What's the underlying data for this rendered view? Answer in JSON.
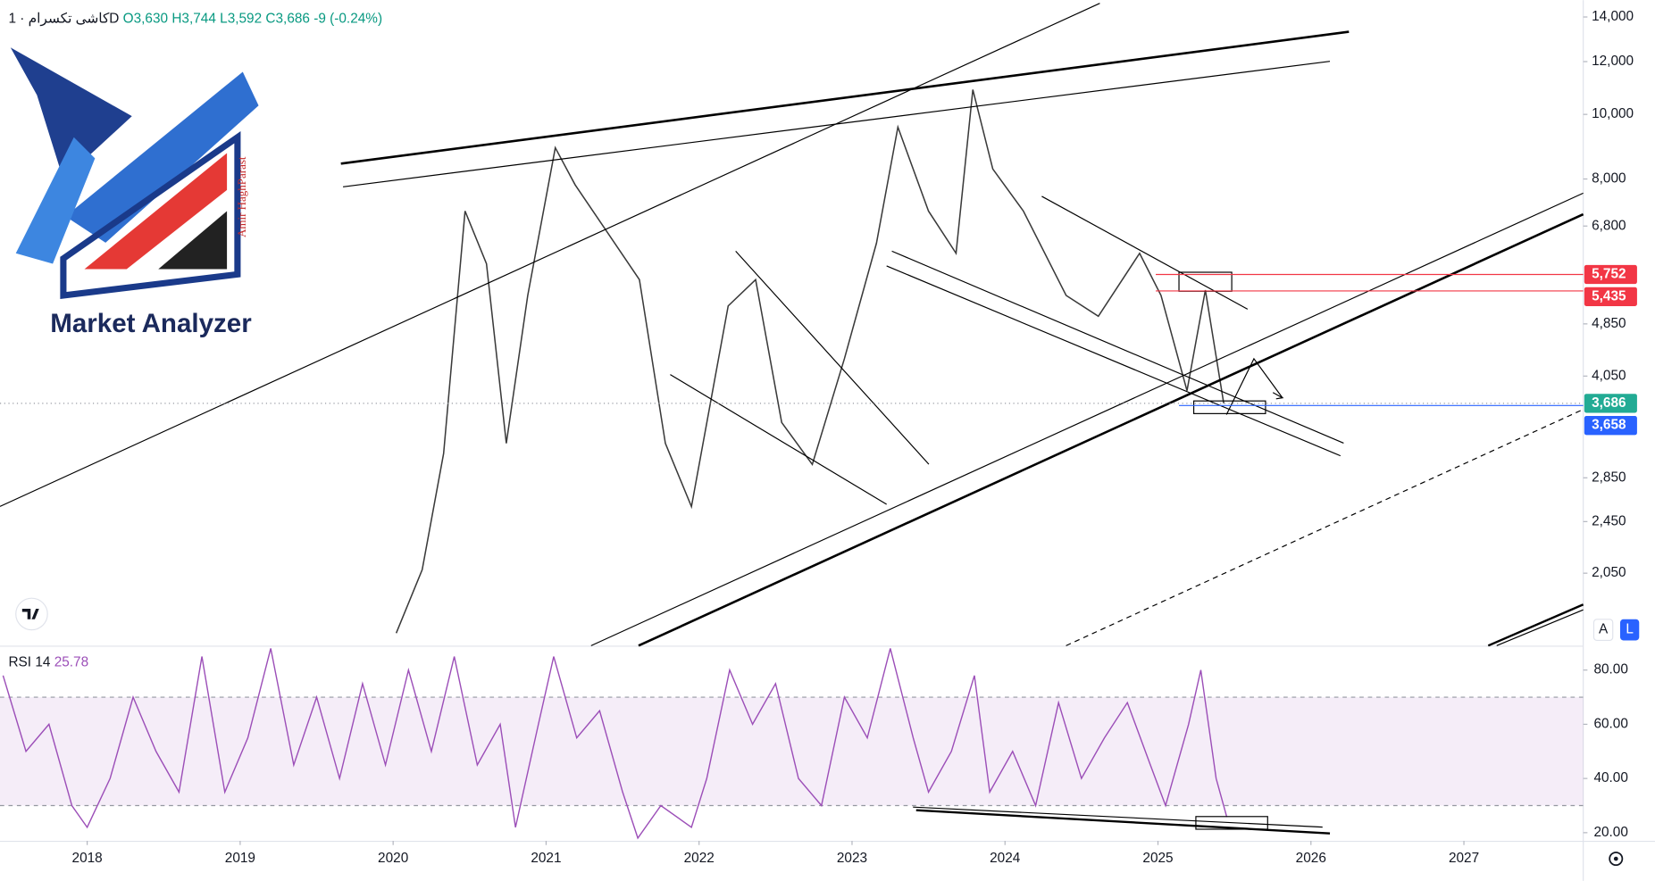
{
  "header": {
    "title": "کاشی تکسرام · 1D",
    "open": "O3,630",
    "high": "H3,744",
    "low": "L3,592",
    "close": "C3,686",
    "change": "-9 (-0.24%)"
  },
  "logo": {
    "brand": "Market Analyzer",
    "author": "Amir HaghParast"
  },
  "controls": {
    "auto": "A",
    "log": "L"
  },
  "chart_data": [
    {
      "type": "line",
      "log_scale": true,
      "xlim": [
        2017.43,
        2027.78
      ],
      "ylim": [
        1596,
        14840
      ],
      "yticks": [
        {
          "value": 14000,
          "label": "14,000"
        },
        {
          "value": 12000,
          "label": "12,000"
        },
        {
          "value": 10000,
          "label": "10,000"
        },
        {
          "value": 8000,
          "label": "8,000"
        },
        {
          "value": 6800,
          "label": "6,800"
        },
        {
          "value": 4850,
          "label": "4,850"
        },
        {
          "value": 4050,
          "label": "4,050"
        },
        {
          "value": 2850,
          "label": "2,850"
        },
        {
          "value": 2450,
          "label": "2,450"
        },
        {
          "value": 2050,
          "label": "2,050"
        }
      ],
      "levels": [
        {
          "value": 5752,
          "label": "5,752",
          "color": "#f23645"
        },
        {
          "value": 5435,
          "label": "5,435",
          "color": "#f23645"
        },
        {
          "value": 3686,
          "label": "3,686",
          "color": "#22ab94"
        },
        {
          "value": 3658,
          "label": "3,658",
          "color": "#2962ff"
        }
      ],
      "series": [
        {
          "name": "کاشی تکسرام",
          "color": "#3a3a3a",
          "x": [
            2020.02,
            2020.19,
            2020.33,
            2020.47,
            2020.61,
            2020.74,
            2020.88,
            2021.06,
            2021.19,
            2021.61,
            2021.78,
            2021.95,
            2022.19,
            2022.37,
            2022.54,
            2022.74,
            2022.95,
            2023.16,
            2023.3,
            2023.5,
            2023.68,
            2023.79,
            2023.92,
            2024.12,
            2024.4,
            2024.61,
            2024.88,
            2025.02,
            2025.19,
            2025.31,
            2025.43
          ],
          "values": [
            1667,
            2075,
            3100,
            7160,
            5970,
            3210,
            5350,
            8910,
            7840,
            5650,
            3210,
            2580,
            5160,
            5650,
            3450,
            2985,
            4300,
            6410,
            9570,
            7160,
            6190,
            10890,
            8280,
            7160,
            5350,
            4980,
            6190,
            5350,
            3850,
            5450,
            3686
          ]
        }
      ]
    },
    {
      "type": "line",
      "xlim": [
        2017.43,
        2027.78
      ],
      "ylim": [
        17,
        89
      ],
      "xticks": [
        2018,
        2019,
        2020,
        2021,
        2022,
        2023,
        2024,
        2025,
        2026,
        2027
      ],
      "yticks": [
        {
          "value": 80,
          "label": "80.00"
        },
        {
          "value": 60,
          "label": "60.00"
        },
        {
          "value": 40,
          "label": "40.00"
        },
        {
          "value": 20,
          "label": "20.00"
        }
      ],
      "bands": [
        30,
        70
      ],
      "current_value": 25.78,
      "series": [
        {
          "name": "RSI 14",
          "color": "#9c4fb8",
          "x": [
            2017.45,
            2017.6,
            2017.75,
            2017.9,
            2018.0,
            2018.15,
            2018.3,
            2018.45,
            2018.6,
            2018.75,
            2018.9,
            2019.05,
            2019.2,
            2019.35,
            2019.5,
            2019.65,
            2019.8,
            2019.95,
            2020.1,
            2020.25,
            2020.4,
            2020.55,
            2020.7,
            2020.8,
            2020.95,
            2021.05,
            2021.2,
            2021.35,
            2021.5,
            2021.6,
            2021.75,
            2021.95,
            2022.05,
            2022.2,
            2022.35,
            2022.5,
            2022.65,
            2022.8,
            2022.95,
            2023.1,
            2023.25,
            2023.4,
            2023.5,
            2023.65,
            2023.8,
            2023.9,
            2024.05,
            2024.2,
            2024.35,
            2024.5,
            2024.65,
            2024.8,
            2024.95,
            2025.05,
            2025.2,
            2025.28,
            2025.38,
            2025.45
          ],
          "values": [
            78,
            50,
            60,
            30,
            22,
            40,
            70,
            50,
            35,
            85,
            35,
            55,
            88,
            45,
            70,
            40,
            75,
            45,
            80,
            50,
            85,
            45,
            60,
            22,
            60,
            85,
            55,
            65,
            35,
            18,
            30,
            22,
            40,
            80,
            60,
            75,
            40,
            30,
            70,
            55,
            88,
            55,
            35,
            50,
            78,
            35,
            50,
            30,
            68,
            40,
            55,
            68,
            45,
            30,
            60,
            80,
            40,
            25.78
          ]
        }
      ]
    }
  ]
}
